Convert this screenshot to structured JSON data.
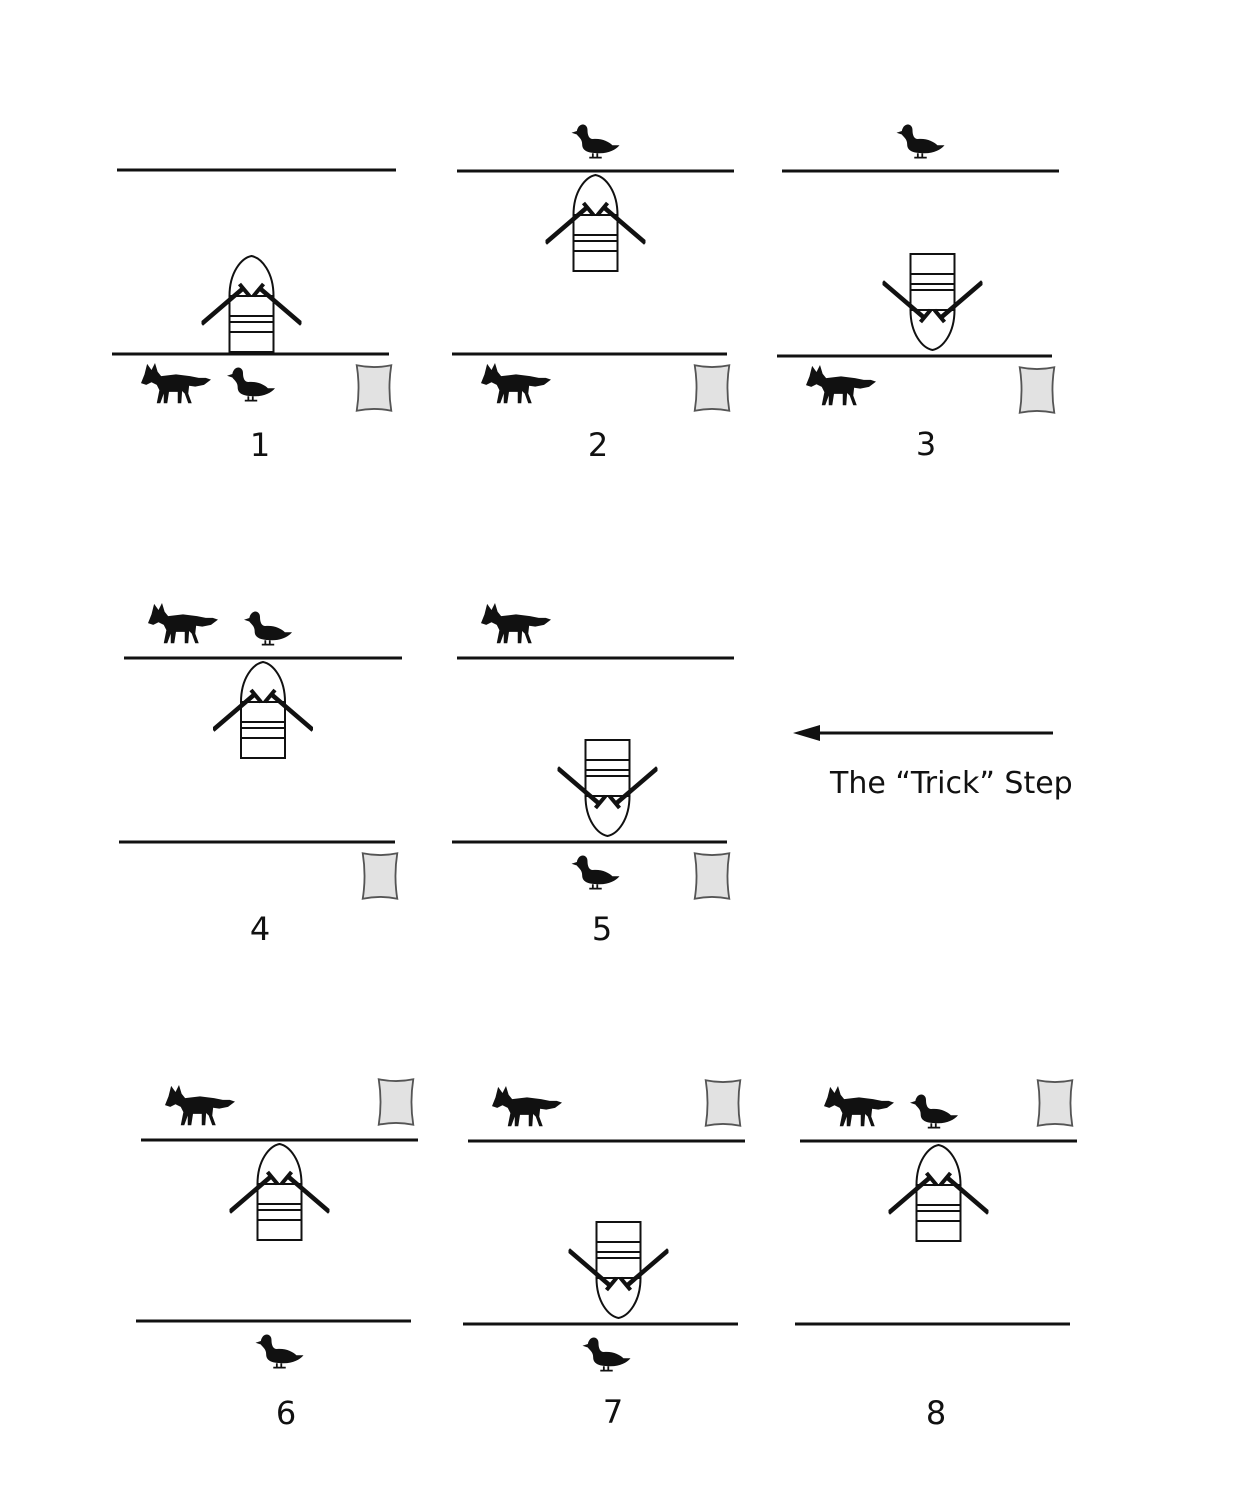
{
  "annotation": {
    "label": "The “Trick” Step"
  },
  "icons": {
    "fox": "fox-icon",
    "duck": "duck-icon",
    "sack": "sack-icon",
    "boat": "rowboat-icon",
    "arrow": "arrow-left-icon"
  },
  "colors": {
    "ink": "#111111",
    "sack_fill": "#e2e2e2",
    "sack_stroke": "#555555"
  },
  "panels": [
    {
      "number": "1",
      "far_bank": [],
      "near_bank": [
        "fox",
        "duck",
        "sack"
      ],
      "boat": "near"
    },
    {
      "number": "2",
      "far_bank": [
        "duck"
      ],
      "near_bank": [
        "fox",
        "sack"
      ],
      "boat": "far"
    },
    {
      "number": "3",
      "far_bank": [
        "duck"
      ],
      "near_bank": [
        "fox",
        "sack"
      ],
      "boat": "near"
    },
    {
      "number": "4",
      "far_bank": [
        "fox",
        "duck"
      ],
      "near_bank": [
        "sack"
      ],
      "boat": "far"
    },
    {
      "number": "5",
      "far_bank": [
        "fox"
      ],
      "near_bank": [
        "duck",
        "sack"
      ],
      "boat": "near"
    },
    {
      "number": "6",
      "far_bank": [
        "fox",
        "sack"
      ],
      "near_bank": [
        "duck"
      ],
      "boat": "far"
    },
    {
      "number": "7",
      "far_bank": [
        "fox",
        "sack"
      ],
      "near_bank": [
        "duck"
      ],
      "boat": "near"
    },
    {
      "number": "8",
      "far_bank": [
        "fox",
        "duck",
        "sack"
      ],
      "near_bank": [],
      "boat": "far"
    }
  ]
}
